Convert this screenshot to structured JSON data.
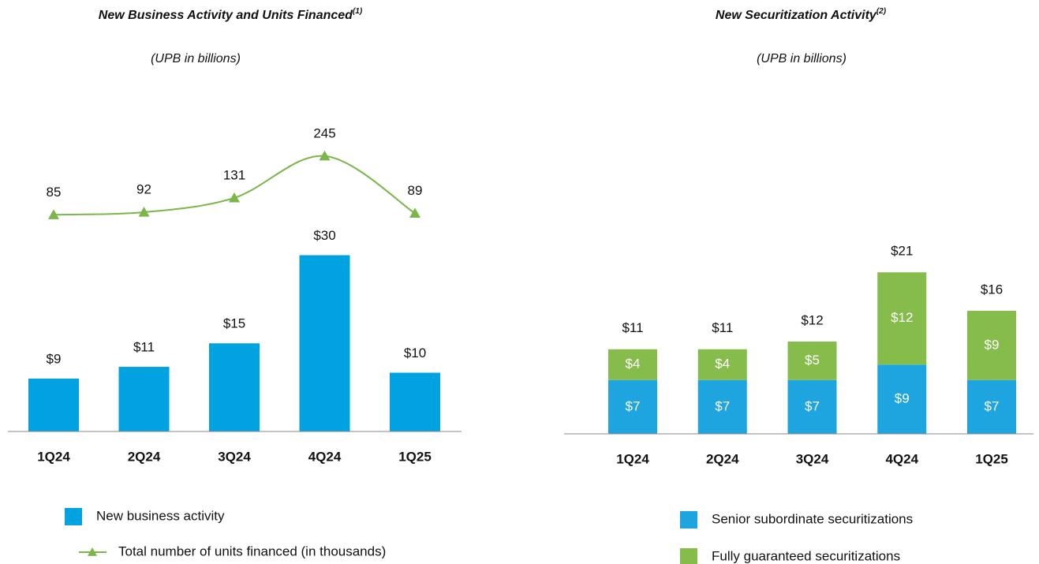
{
  "chart_data": [
    {
      "type": "combo",
      "title": "New Business Activity and Units Financed",
      "title_note": "(1)",
      "subtitle": "(UPB in billions)",
      "categories": [
        "1Q24",
        "2Q24",
        "3Q24",
        "4Q24",
        "1Q25"
      ],
      "ylim": [
        0,
        60
      ],
      "y2lim": [
        -505,
        455
      ],
      "series": [
        {
          "name": "New business activity",
          "type": "bar",
          "color": "#00a3e0",
          "values": [
            9,
            11,
            15,
            30,
            10
          ],
          "value_labels": [
            "$9",
            "$11",
            "$15",
            "$30",
            "$10"
          ]
        },
        {
          "name": "Total number of units financed (in thousands)",
          "type": "line",
          "axis": "y2",
          "color": "#7ab648",
          "values": [
            85,
            92,
            131,
            245,
            89
          ]
        }
      ]
    },
    {
      "type": "bar",
      "stacked": true,
      "title": "New Securitization Activity",
      "title_note": "(2)",
      "subtitle": "(UPB in billions)",
      "categories": [
        "1Q24",
        "2Q24",
        "3Q24",
        "4Q24",
        "1Q25"
      ],
      "ylim": [
        0,
        40
      ],
      "series": [
        {
          "name": "Senior subordinate securitizations",
          "color": "#1ea5e0",
          "values": [
            7,
            7,
            7,
            9,
            7
          ],
          "value_labels": [
            "$7",
            "$7",
            "$7",
            "$9",
            "$7"
          ]
        },
        {
          "name": "Fully guaranteed securitizations",
          "color": "#86bc4b",
          "values": [
            4,
            4,
            5,
            12,
            9
          ],
          "value_labels": [
            "$4",
            "$4",
            "$5",
            "$12",
            "$9"
          ]
        }
      ],
      "totals": [
        11,
        11,
        12,
        21,
        16
      ],
      "total_labels": [
        "$11",
        "$11",
        "$12",
        "$21",
        "$16"
      ]
    }
  ]
}
